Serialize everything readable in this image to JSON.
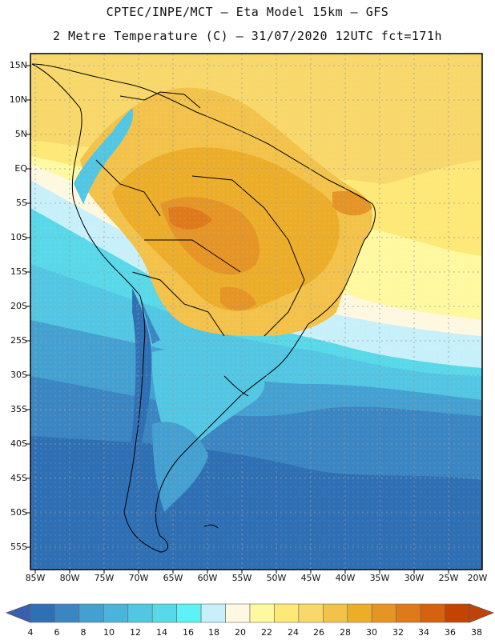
{
  "header": {
    "line1": "CPTEC/INPE/MCT –  Eta Model 15km – GFS",
    "line2": "2 Metre Temperature (C) – 31/07/2020 12UTC fct=171h"
  },
  "map": {
    "lat_labels": [
      "15N",
      "10N",
      "5N",
      "EQ",
      "5S",
      "10S",
      "15S",
      "20S",
      "25S",
      "30S",
      "35S",
      "40S",
      "45S",
      "50S",
      "55S"
    ],
    "lon_labels": [
      "85W",
      "80W",
      "75W",
      "70W",
      "65W",
      "60W",
      "55W",
      "50W",
      "45W",
      "40W",
      "35W",
      "30W",
      "25W",
      "20W"
    ]
  },
  "colorbar": {
    "labels": [
      "4",
      "6",
      "8",
      "10",
      "12",
      "14",
      "16",
      "18",
      "20",
      "22",
      "24",
      "26",
      "28",
      "30",
      "32",
      "34",
      "36",
      "38"
    ],
    "colors": [
      "#2f6fb4",
      "#3b86c2",
      "#44a0d0",
      "#4cb4dc",
      "#52c6e2",
      "#58d8e8",
      "#5ef2f6",
      "#c8f0fa",
      "#fff8e0",
      "#fef9a0",
      "#fde878",
      "#f8d86a",
      "#f2c24a",
      "#ecae2a",
      "#e59426",
      "#de7a1c",
      "#d4620e",
      "#c24400"
    ],
    "under_color": "#3a5fb0",
    "over_color": "#c0420a"
  }
}
